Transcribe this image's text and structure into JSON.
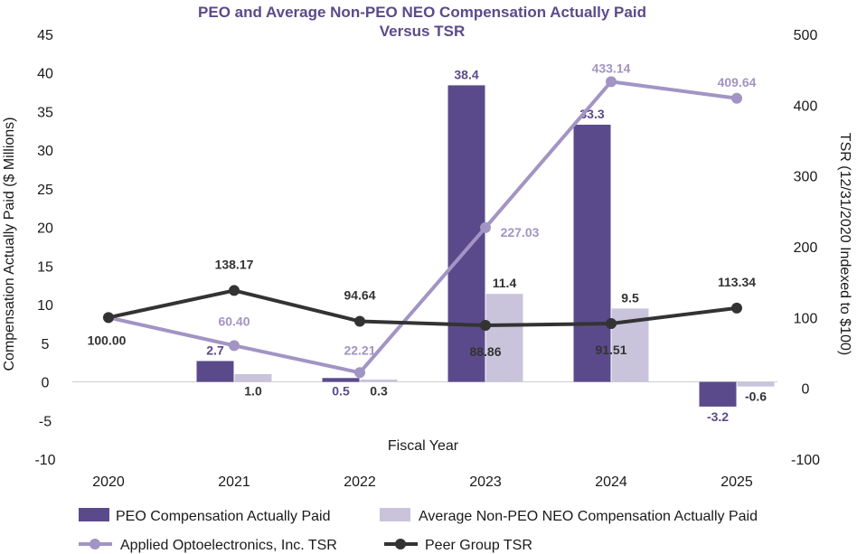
{
  "chart_data": {
    "type": "bar+line",
    "title": "PEO and Average Non-PEO NEO Compensation Actually Paid",
    "subtitle": "Versus TSR",
    "xlabel": "Fiscal Year",
    "ylabel": "Compensation Actually Paid ($ Millions)",
    "y2label": "TSR (12/31/2020 Indexed to $100)",
    "ylim": [
      -10,
      45
    ],
    "y2lim": [
      -100,
      500
    ],
    "yticks": [
      "45",
      "40",
      "35",
      "30",
      "25",
      "20",
      "15",
      "10",
      "5",
      "0",
      "-5",
      "-10"
    ],
    "y2ticks": [
      "500",
      "400",
      "300",
      "200",
      "100",
      "0",
      "-100"
    ],
    "categories": [
      "2020",
      "2021",
      "2022",
      "2023",
      "2024",
      "2025"
    ],
    "bar_series": [
      {
        "name": "PEO Compensation Actually Paid",
        "color": "#5b4a8b",
        "values": [
          null,
          2.7,
          0.5,
          38.4,
          33.3,
          -3.2
        ],
        "labels": [
          "",
          "2.7",
          "0.5",
          "38.4",
          "33.3",
          "-3.2"
        ]
      },
      {
        "name": "Average Non-PEO NEO Compensation Actually Paid",
        "color": "#c9c4dc",
        "values": [
          null,
          1.0,
          0.3,
          11.4,
          9.5,
          -0.6
        ],
        "labels": [
          "",
          "1.0",
          "0.3",
          "11.4",
          "9.5",
          "-0.6"
        ]
      }
    ],
    "line_series": [
      {
        "name": "Applied Optoelectronics, Inc. TSR",
        "color": "#a294c4",
        "values": [
          100.0,
          60.4,
          22.21,
          227.03,
          433.14,
          409.64
        ],
        "labels": [
          "",
          "60.40",
          "22.21",
          "227.03",
          "433.14",
          "409.64"
        ]
      },
      {
        "name": "Peer Group TSR",
        "color": "#333333",
        "values": [
          100.0,
          138.17,
          94.64,
          88.86,
          91.51,
          113.34
        ],
        "labels": [
          "100.00",
          "138.17",
          "94.64",
          "88.86",
          "91.51",
          "113.34"
        ]
      }
    ]
  },
  "colors": {
    "title": "#5b4a8b",
    "peo_label": "#5b4a8b",
    "neo_label": "#333333",
    "tsr_label": "#a294c4",
    "peer_label": "#333333"
  }
}
